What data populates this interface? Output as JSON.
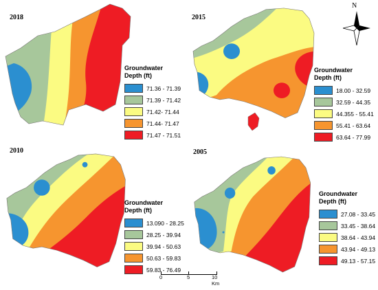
{
  "legend_title": "Groundwater\nDepth (ft)",
  "panels": [
    {
      "year": "2018",
      "classes": [
        {
          "label": "71.36 - 71.39",
          "color": "#2b8fd0"
        },
        {
          "label": "71.39 - 71.42",
          "color": "#a7c79b"
        },
        {
          "label": "71.42- 71.44",
          "color": "#fbfb82"
        },
        {
          "label": "71.44- 71.47",
          "color": "#f6952f"
        },
        {
          "label": "71.47 - 71.51",
          "color": "#ee1c24"
        }
      ]
    },
    {
      "year": "2015",
      "classes": [
        {
          "label": "18.00 - 32.59",
          "color": "#2b8fd0"
        },
        {
          "label": "32.59 - 44.35",
          "color": "#a7c79b"
        },
        {
          "label": "44.355 - 55.41",
          "color": "#fbfb82"
        },
        {
          "label": "55.41 - 63.64",
          "color": "#f6952f"
        },
        {
          "label": "63.64 - 77.99",
          "color": "#ee1c24"
        }
      ]
    },
    {
      "year": "2010",
      "classes": [
        {
          "label": "13.090 - 28.25",
          "color": "#2b8fd0"
        },
        {
          "label": "28.25 - 39.94",
          "color": "#a7c79b"
        },
        {
          "label": "39.94 - 50.63",
          "color": "#fbfb82"
        },
        {
          "label": "50.63 - 59.83",
          "color": "#f6952f"
        },
        {
          "label": "59.83 - 76.49",
          "color": "#ee1c24"
        }
      ]
    },
    {
      "year": "2005",
      "classes": [
        {
          "label": "27.08 - 33.45",
          "color": "#2b8fd0"
        },
        {
          "label": "33.45 - 38.64",
          "color": "#a7c79b"
        },
        {
          "label": "38.64 - 43.94",
          "color": "#fbfb82"
        },
        {
          "label": "43.94 - 49.13",
          "color": "#f6952f"
        },
        {
          "label": "49.13 - 57.15",
          "color": "#ee1c24"
        }
      ]
    }
  ],
  "north_arrow": {
    "label": "N",
    "icon": "north-arrow-icon"
  },
  "scale_bar": {
    "ticks": [
      "0",
      "5",
      "10 Km"
    ]
  }
}
